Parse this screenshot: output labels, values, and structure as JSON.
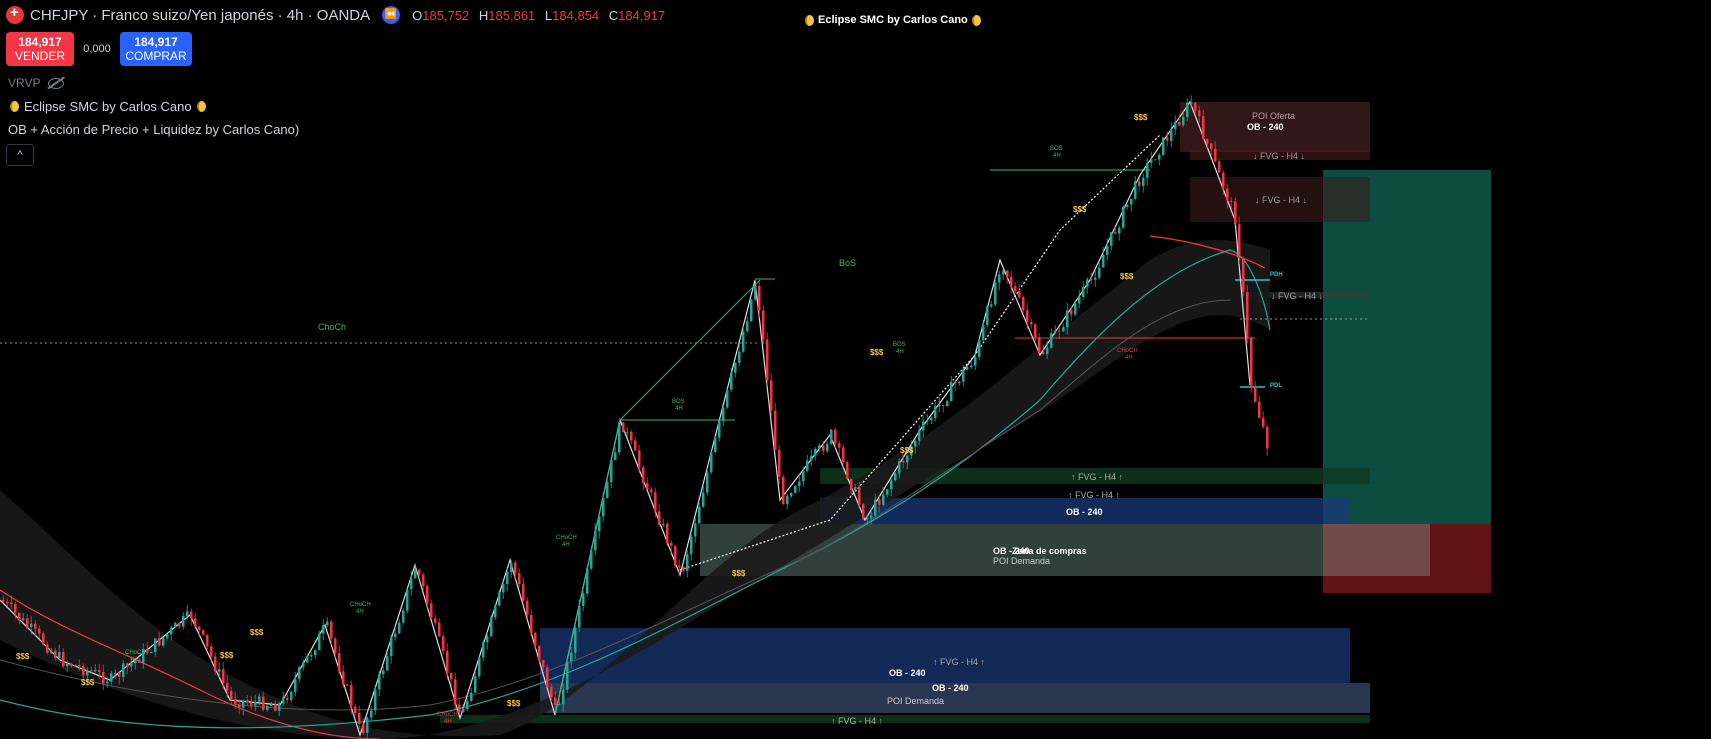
{
  "header": {
    "symbol_title": "CHFJPY · Franco suizo/Yen japonés · 4h · OANDA",
    "ohlc": {
      "o_label": "O",
      "o_value": "185,752",
      "h_label": "H",
      "h_value": "185,861",
      "l_label": "L",
      "l_value": "184,854",
      "c_label": "C",
      "c_value": "184,917"
    }
  },
  "center_title": "Eclipse SMC by Carlos Cano",
  "trade": {
    "sell_price": "184,917",
    "sell_label": "VENDER",
    "spread": "0,000",
    "buy_price": "184,917",
    "buy_label": "COMPRAR"
  },
  "indicators": {
    "vrvp": "VRVP",
    "eclipse": "Eclipse SMC by Carlos Cano",
    "ob_indicator": "OB + Acción de Precio + Liquidez by Carlos Cano)",
    "collapse_icon": "chevron-up-icon"
  },
  "annotations": {
    "poi_oferta": "POI Oferta",
    "ob_240": "OB - 240",
    "fvg_h4_down": "↓ FVG - H4 ↓",
    "fvg_h4_up": "↑ FVG - H4 ↑",
    "bos": "BoS",
    "bos_4h_top": "BOS",
    "bos_4h_bottom": "4H",
    "choch": "ChoCh",
    "choch_4h_top": "CHoCH",
    "choch_4h_bottom": "4H",
    "liquidity": "$$$",
    "pdh": "PDH",
    "pdl": "PDL",
    "zona_compras": "Zona de compras",
    "poi_demanda": "POI Demanda"
  },
  "colors": {
    "bull_candle": "#26a69a",
    "bear_candle": "#f23645",
    "background": "#000000",
    "position_target": "#0f5a4b",
    "position_stop": "#6b1418",
    "ob_zone": "#1a3a7a",
    "supply_zone": "#5a2a2a"
  }
}
